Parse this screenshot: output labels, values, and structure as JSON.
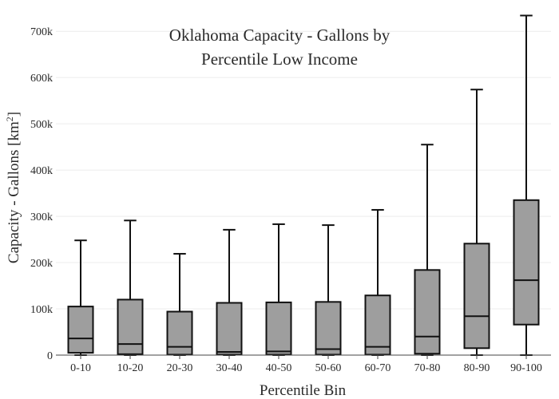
{
  "chart_data": {
    "type": "box",
    "title_lines": [
      "Oklahoma Capacity - Gallons by",
      "Percentile Low Income"
    ],
    "xlabel": "Percentile Bin",
    "ylabel_text": "Capacity - Gallons  [km",
    "ylabel_sup": "2",
    "ylabel_close": "]",
    "ylim": [
      0,
      740000
    ],
    "yticks": [
      0,
      100000,
      200000,
      300000,
      400000,
      500000,
      600000,
      700000
    ],
    "ytick_labels": [
      "0",
      "100k",
      "200k",
      "300k",
      "400k",
      "500k",
      "600k",
      "700k"
    ],
    "grid": true,
    "colors": {
      "box_fill": "#9e9e9e",
      "box_stroke": "#111111",
      "grid": "#ececec"
    },
    "categories": [
      "0-10",
      "10-20",
      "20-30",
      "30-40",
      "40-50",
      "50-60",
      "60-70",
      "70-80",
      "80-90",
      "90-100"
    ],
    "boxes": [
      {
        "min": 0,
        "q1": 5000,
        "median": 36000,
        "q3": 105000,
        "max": 248000
      },
      {
        "min": 0,
        "q1": 2000,
        "median": 24000,
        "q3": 120000,
        "max": 291000
      },
      {
        "min": 0,
        "q1": 1000,
        "median": 18000,
        "q3": 94000,
        "max": 219000
      },
      {
        "min": 0,
        "q1": 1000,
        "median": 7000,
        "q3": 113000,
        "max": 271000
      },
      {
        "min": 0,
        "q1": 1000,
        "median": 8000,
        "q3": 114000,
        "max": 283000
      },
      {
        "min": 0,
        "q1": 1000,
        "median": 13000,
        "q3": 115000,
        "max": 281000
      },
      {
        "min": 0,
        "q1": 1000,
        "median": 18000,
        "q3": 129000,
        "max": 314000
      },
      {
        "min": 0,
        "q1": 3000,
        "median": 40000,
        "q3": 184000,
        "max": 455000
      },
      {
        "min": 0,
        "q1": 15000,
        "median": 84000,
        "q3": 241000,
        "max": 574000
      },
      {
        "min": 0,
        "q1": 66000,
        "median": 162000,
        "q3": 335000,
        "max": 734000
      }
    ]
  }
}
